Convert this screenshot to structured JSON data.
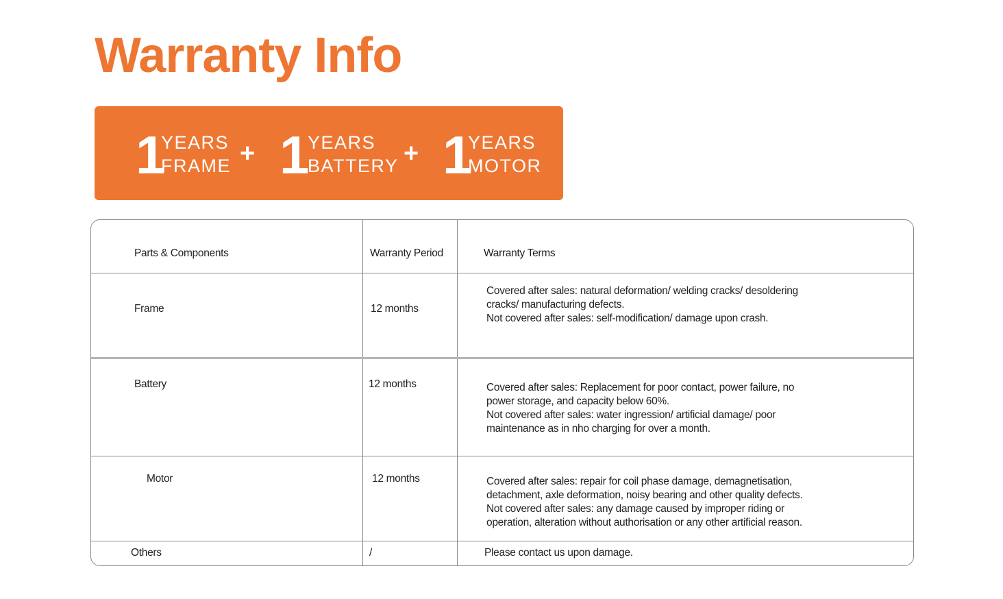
{
  "title": "Warranty Info",
  "banner": {
    "separator": "+",
    "items": [
      {
        "number": "1",
        "unit": "YEARS",
        "part": "FRAME"
      },
      {
        "number": "1",
        "unit": "YEARS",
        "part": "BATTERY"
      },
      {
        "number": "1",
        "unit": "YEARS",
        "part": "MOTOR"
      }
    ]
  },
  "table": {
    "header": [
      "Parts & Components",
      "Warranty Period",
      "Warranty Terms"
    ],
    "rows": [
      {
        "part": "Frame",
        "period": "12 months",
        "terms": [
          "Covered after sales: natural deformation/ welding cracks/ desoldering",
          "cracks/ manufacturing defects.",
          "Not covered after sales: self-modification/ damage upon crash."
        ]
      },
      {
        "part": "Battery",
        "period": "12 months",
        "terms": [
          "Covered after sales: Replacement for poor contact, power failure, no",
          "power storage, and capacity below 60%.",
          "Not covered after sales: water ingression/ artificial damage/ poor",
          "maintenance as in nho charging for over a month."
        ]
      },
      {
        "part": "Motor",
        "period": "12 months",
        "terms": [
          "Covered after sales:  repair for coil phase damage, demagnetisation,",
          "detachment, axle deformation, noisy bearing and other quality defects.",
          "Not covered after sales: any damage caused by improper riding or",
          "operation, alteration without authorisation or any other artificial reason."
        ]
      },
      {
        "part": "Others",
        "period": "/",
        "terms": [
          "Please contact us upon damage."
        ]
      }
    ]
  }
}
